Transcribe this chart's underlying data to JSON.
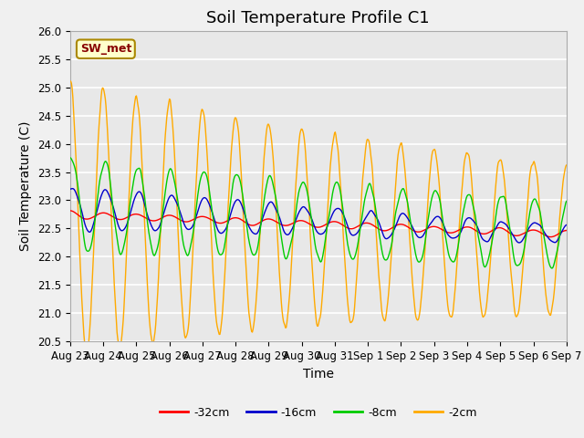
{
  "title": "Soil Temperature Profile C1",
  "xlabel": "Time",
  "ylabel": "Soil Temperature (C)",
  "ylim": [
    20.5,
    26.0
  ],
  "yticks": [
    20.5,
    21.0,
    21.5,
    22.0,
    22.5,
    23.0,
    23.5,
    24.0,
    24.5,
    25.0,
    25.5,
    26.0
  ],
  "x_tick_labels": [
    "Aug 23",
    "Aug 24",
    "Aug 25",
    "Aug 26",
    "Aug 27",
    "Aug 28",
    "Aug 29",
    "Aug 30",
    "Aug 31",
    "Sep 1",
    "Sep 2",
    "Sep 3",
    "Sep 4",
    "Sep 5",
    "Sep 6",
    "Sep 7"
  ],
  "legend_labels": [
    "-32cm",
    "-16cm",
    "-8cm",
    "-2cm"
  ],
  "line_colors": [
    "#ff0000",
    "#0000cc",
    "#00cc00",
    "#ffaa00"
  ],
  "annotation_text": "SW_met",
  "annotation_bg": "#ffffcc",
  "annotation_border": "#aa8800",
  "bg_color": "#e8e8e8",
  "plot_bg": "#e8e8e8",
  "grid_color": "#ffffff",
  "title_fontsize": 13,
  "label_fontsize": 10,
  "tick_fontsize": 8.5
}
